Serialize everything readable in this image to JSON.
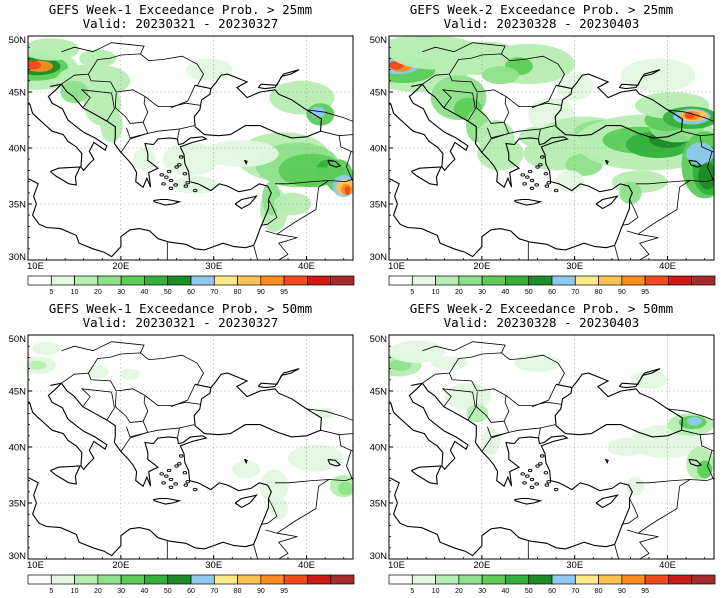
{
  "levels": [
    "5",
    "10",
    "20",
    "30",
    "40",
    "50",
    "60",
    "70",
    "80",
    "90",
    "95"
  ],
  "colors": [
    "#ffffff",
    "#e3f7e1",
    "#b6edb1",
    "#8ee08a",
    "#5ccc57",
    "#33b13a",
    "#1d8b26",
    "#8fc8f1",
    "#fee98a",
    "#fec251",
    "#fb8c20",
    "#f14a1b",
    "#cc1a16",
    "#a52b2b"
  ],
  "lon_labels": [
    "10E",
    "20E",
    "30E",
    "40E"
  ],
  "lat_labels": [
    "50N",
    "45N",
    "40N",
    "35N",
    "30N"
  ],
  "panels": [
    {
      "title": "GEFS Week-1 Exceedance Prob. > 25mm",
      "valid": "Valid: 20230321 - 20230327"
    },
    {
      "title": "GEFS Week-2 Exceedance Prob. > 25mm",
      "valid": "Valid: 20230328 - 20230403"
    },
    {
      "title": "GEFS Week-1 Exceedance Prob. > 50mm",
      "valid": "Valid: 20230321 - 20230327"
    },
    {
      "title": "GEFS Week-2 Exceedance Prob. > 50mm",
      "valid": "Valid: 20230328 - 20230403"
    }
  ]
}
